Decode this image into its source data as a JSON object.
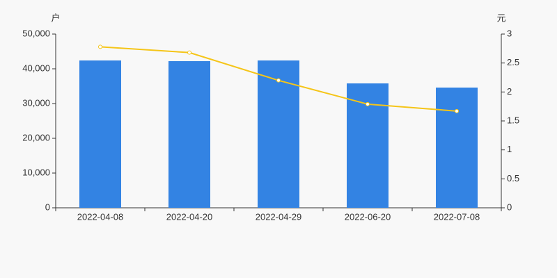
{
  "chart_data": {
    "type": "bar",
    "y_label": "户",
    "y2_label": "元",
    "categories": [
      "2022-04-08",
      "2022-04-20",
      "2022-04-29",
      "2022-06-20",
      "2022-07-08"
    ],
    "series": [
      {
        "type": "bar",
        "color": "#3383e3",
        "values": [
          42400,
          42200,
          42400,
          35800,
          34600
        ]
      },
      {
        "type": "line",
        "color": "#f5c518",
        "axis": "y2",
        "values": [
          2.78,
          2.68,
          2.2,
          1.79,
          1.67
        ]
      }
    ],
    "ylim": [
      0,
      50000
    ],
    "yticks": [
      0,
      {
        "value": 10000,
        "label": "10,000"
      },
      {
        "value": 20000,
        "label": "20,000"
      },
      {
        "value": 30000,
        "label": "30,000"
      },
      {
        "value": 40000,
        "label": "40,000"
      },
      {
        "value": 50000,
        "label": "50,000"
      }
    ],
    "y2lim": [
      0,
      3
    ],
    "y2ticks": [
      0,
      0.5,
      1,
      1.5,
      2,
      2.5,
      3
    ]
  }
}
